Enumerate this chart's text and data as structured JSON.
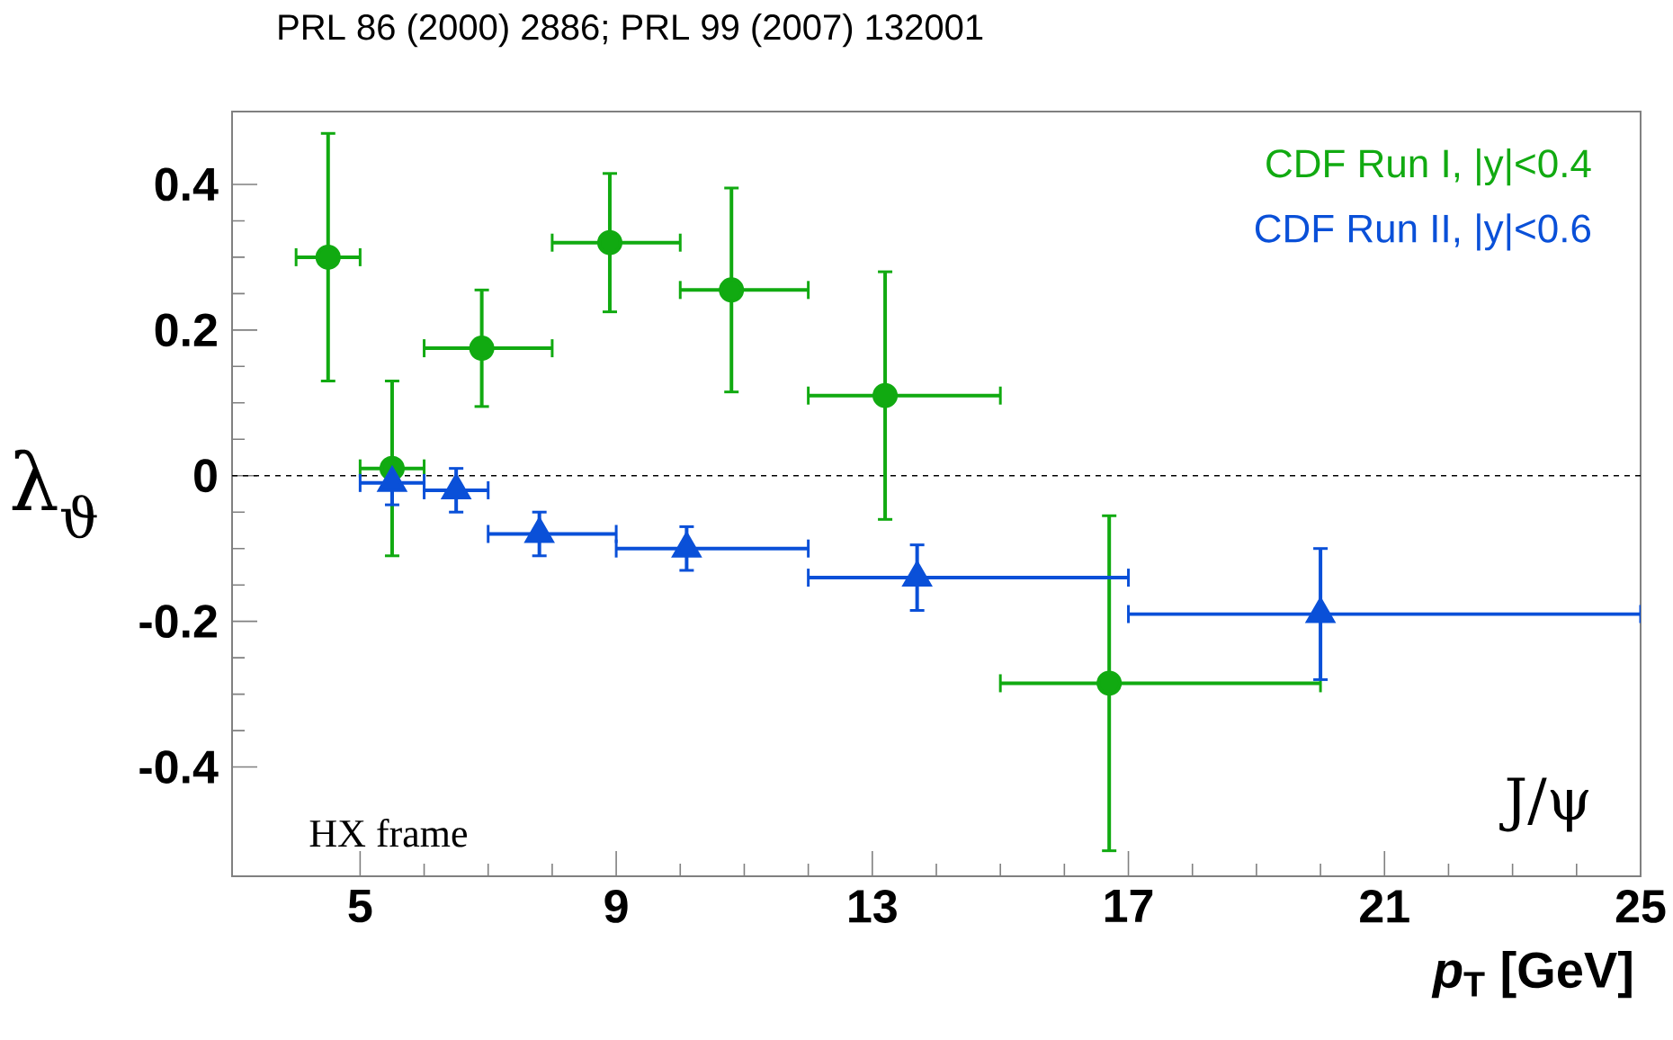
{
  "chart_data": {
    "type": "scatter",
    "title": "PRL 86 (2000) 2886; PRL 99 (2007) 132001",
    "xlabel": "*p*$_{T}$ [GeV]",
    "ylabel": "λ$_{ϑ}$",
    "xlim": [
      3,
      25
    ],
    "xticks": [
      5,
      9,
      13,
      17,
      21,
      25
    ],
    "ylim": [
      -0.55,
      0.5
    ],
    "yticks": [
      {
        "value": -0.4,
        "label": "-0.4"
      },
      {
        "value": -0.2,
        "label": "-0.2"
      },
      0,
      0.2,
      0.4
    ],
    "grid": false,
    "ref_lines": [
      {
        "axis": "y",
        "value": 0,
        "color": "#000000",
        "line_style": "dashed"
      }
    ],
    "annotations": [
      "HX frame",
      "J/ψ"
    ],
    "series": [
      {
        "name": "CDF Run I, |y|<0.4",
        "color": "#11aa11",
        "marker": "circle",
        "x": [
          4.5,
          5.5,
          6.9,
          8.9,
          10.8,
          13.2,
          16.7
        ],
        "values": [
          0.3,
          0.01,
          0.175,
          0.32,
          0.255,
          0.11,
          -0.285
        ],
        "errors": [
          0.17,
          0.12,
          0.08,
          0.095,
          0.14,
          0.17,
          0.23
        ],
        "xerrors": [
          0.5,
          0.5,
          [
            6,
            8
          ],
          [
            8,
            10
          ],
          [
            10,
            12
          ],
          [
            12,
            15
          ],
          [
            15,
            20
          ]
        ]
      },
      {
        "name": "CDF Run II, |y|<0.6",
        "color": "#0a50d8",
        "marker": "triangle",
        "x": [
          5.5,
          6.5,
          7.8,
          10.1,
          13.7,
          20.0
        ],
        "values": [
          -0.01,
          -0.02,
          -0.08,
          -0.1,
          -0.14,
          -0.19
        ],
        "errors": [
          0.03,
          0.03,
          0.03,
          0.03,
          0.045,
          0.09
        ],
        "xerrors": [
          0.5,
          0.5,
          [
            7,
            9
          ],
          [
            9,
            12
          ],
          [
            12,
            17
          ],
          [
            17,
            25
          ]
        ]
      }
    ]
  }
}
